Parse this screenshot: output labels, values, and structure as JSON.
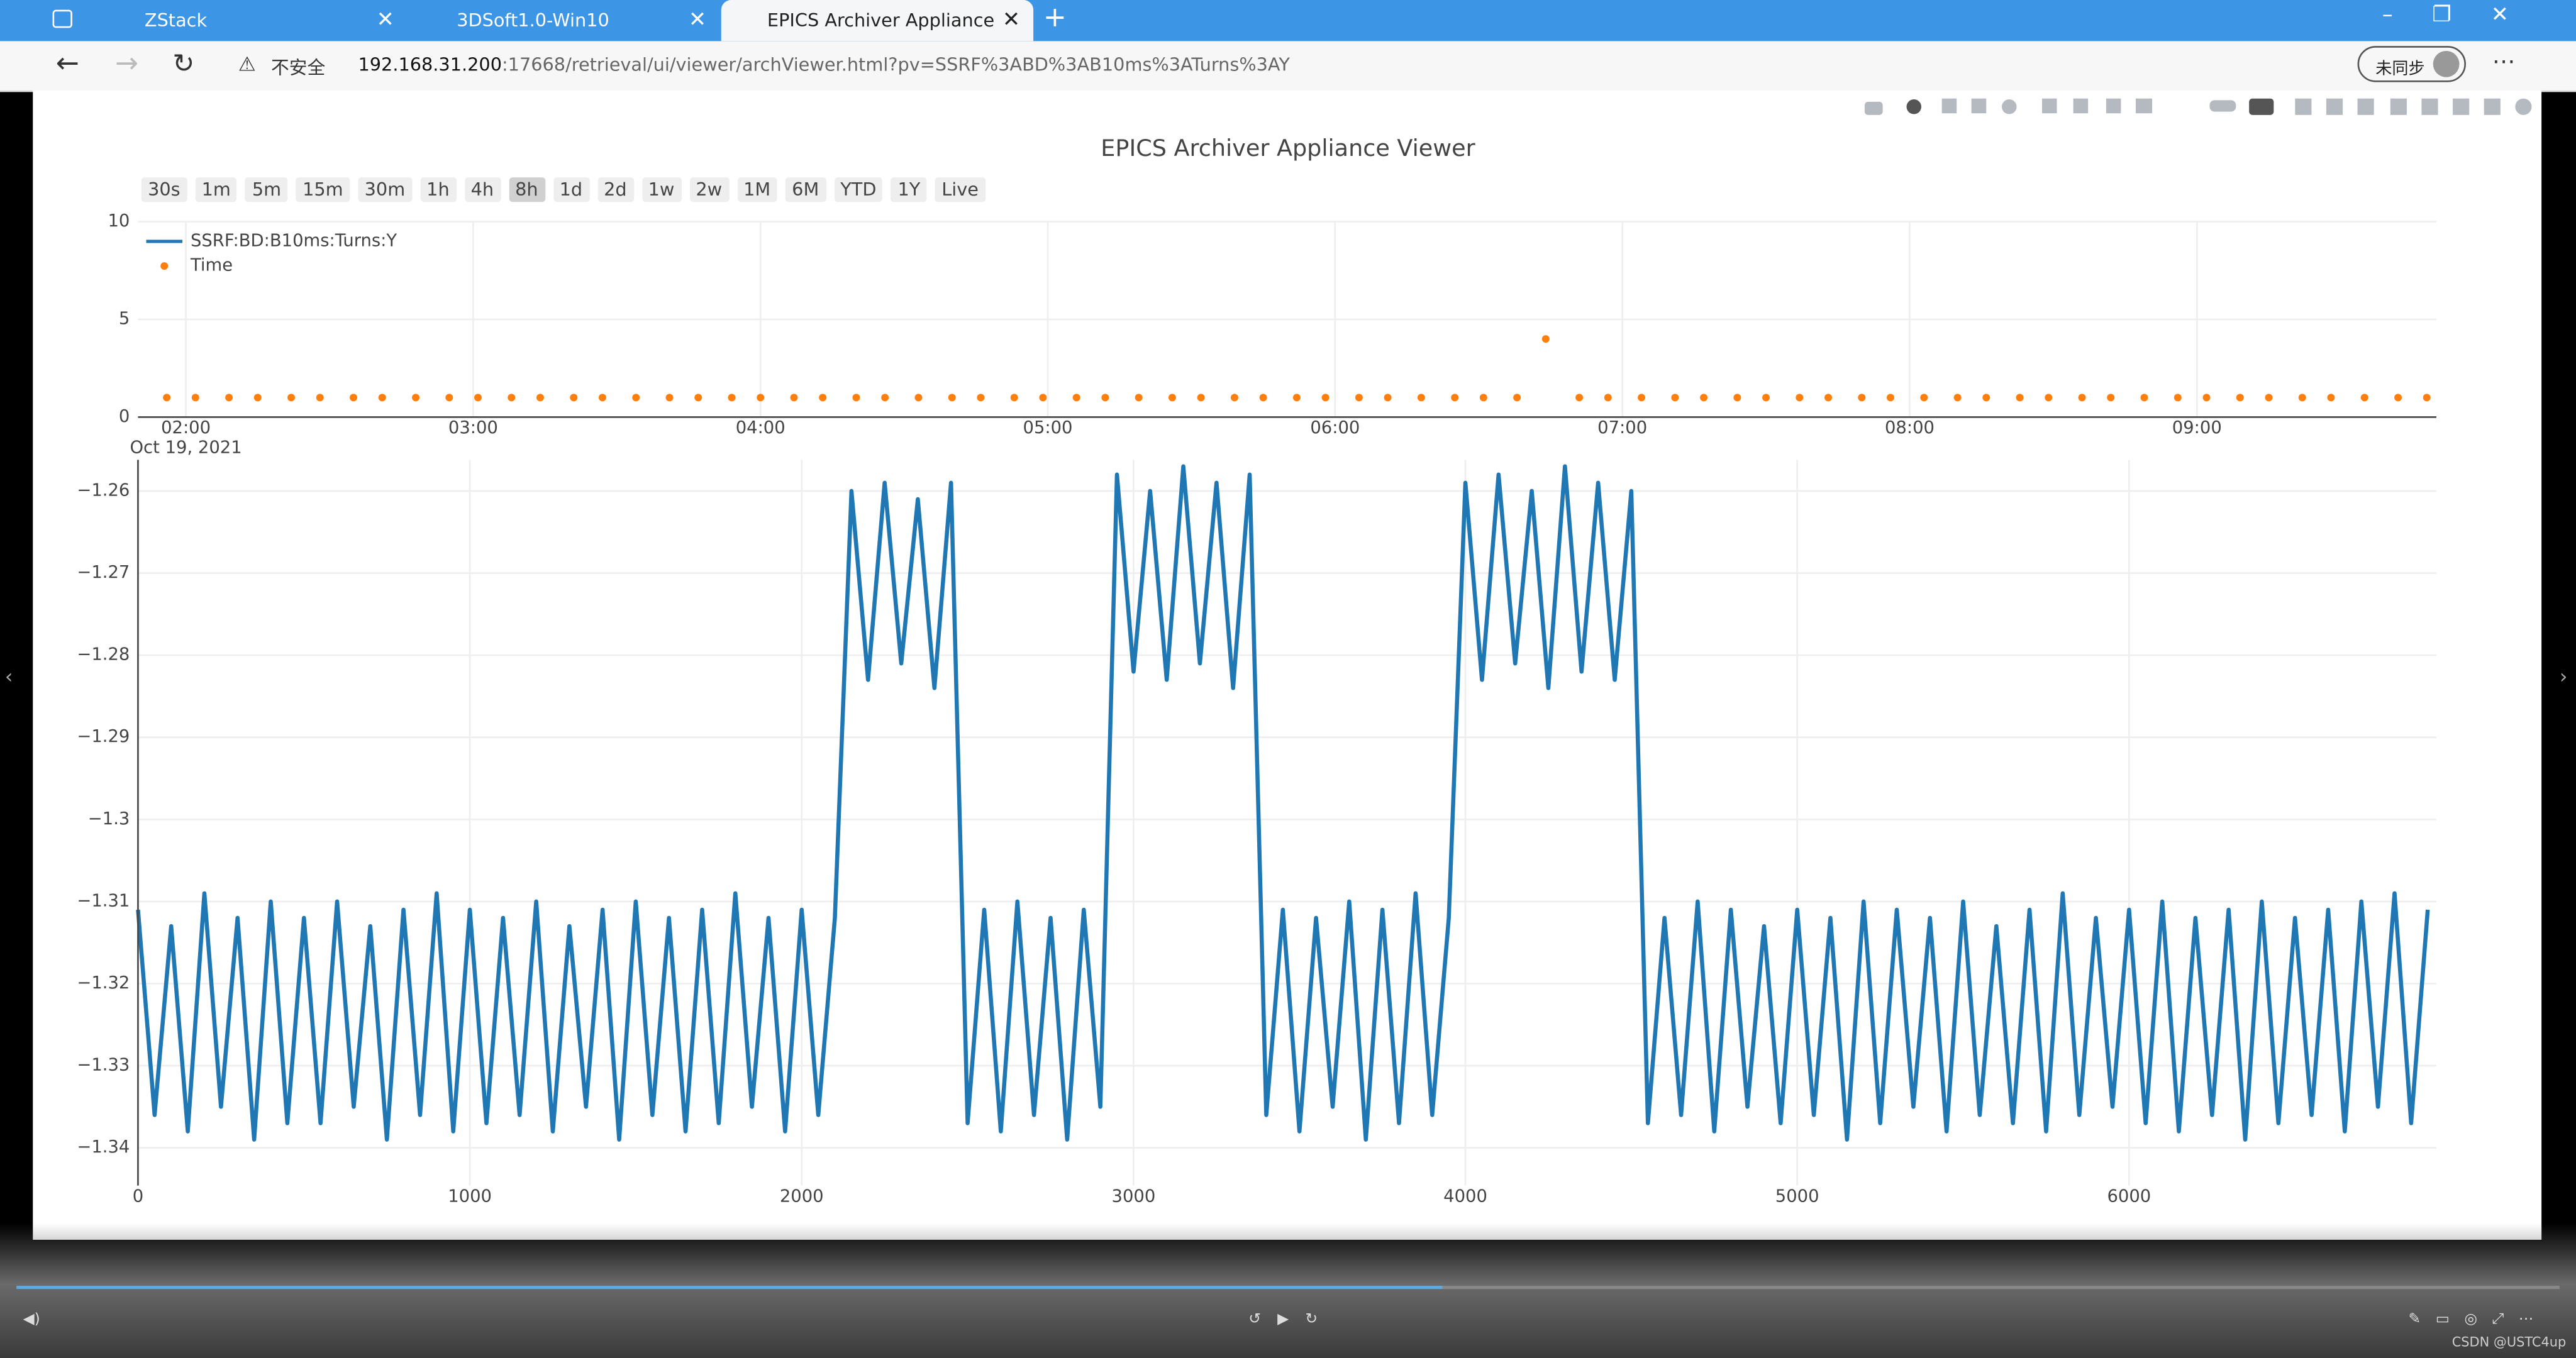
{
  "browser": {
    "tabs": [
      "ZStack",
      "3DSoft1.0-Win10",
      "EPICS Archiver Appliance"
    ],
    "active_tab": 2,
    "security_label": "不安全",
    "url_host": "192.168.31.200",
    "url_path": ":17668/retrieval/ui/viewer/archViewer.html?pv=SSRF%3ABD%3AB10ms%3ATurns%3AY",
    "profile_label": "未同步"
  },
  "range_buttons": [
    "30s",
    "1m",
    "5m",
    "15m",
    "30m",
    "1h",
    "4h",
    "8h",
    "1d",
    "2d",
    "1w",
    "2w",
    "1M",
    "6M",
    "YTD",
    "1Y",
    "Live"
  ],
  "active_range_button": 7,
  "chart_data": [
    {
      "type": "scatter",
      "title": "EPICS Archiver Appliance Viewer",
      "x": [
        "01:56",
        "02:02",
        "02:09",
        "02:15",
        "02:22",
        "02:28",
        "02:35",
        "02:41",
        "02:48",
        "02:55",
        "03:01",
        "03:08",
        "03:14",
        "03:21",
        "03:27",
        "03:34",
        "03:41",
        "03:47",
        "03:54",
        "04:00",
        "04:07",
        "04:13",
        "04:20",
        "04:26",
        "04:33",
        "04:40",
        "04:46",
        "04:53",
        "04:59",
        "05:06",
        "05:12",
        "05:19",
        "05:26",
        "05:32",
        "05:39",
        "05:45",
        "05:52",
        "05:58",
        "06:05",
        "06:11",
        "06:18",
        "06:25",
        "06:31",
        "06:38",
        "06:44",
        "06:51",
        "06:57",
        "07:04",
        "07:11",
        "07:17",
        "07:24",
        "07:30",
        "07:37",
        "07:43",
        "07:50",
        "07:56",
        "08:03",
        "08:10",
        "08:16",
        "08:23",
        "08:29",
        "08:36",
        "08:42",
        "08:49",
        "08:56",
        "09:02",
        "09:09",
        "09:15",
        "09:22",
        "09:28",
        "09:35",
        "09:42",
        "09:48"
      ],
      "series": [
        {
          "name": "Time",
          "color": "#ff7f0e",
          "values": [
            1,
            1,
            1,
            1,
            1,
            1,
            1,
            1,
            1,
            1,
            1,
            1,
            1,
            1,
            1,
            1,
            1,
            1,
            1,
            1,
            1,
            1,
            1,
            1,
            1,
            1,
            1,
            1,
            1,
            1,
            1,
            1,
            1,
            1,
            1,
            1,
            1,
            1,
            1,
            1,
            1,
            1,
            1,
            1,
            4,
            1,
            1,
            1,
            1,
            1,
            1,
            1,
            1,
            1,
            1,
            1,
            1,
            1,
            1,
            1,
            1,
            1,
            1,
            1,
            1,
            1,
            1,
            1,
            1,
            1,
            1,
            1,
            1
          ]
        }
      ],
      "xlim": [
        "01:50",
        "09:50"
      ],
      "xticks": [
        "02:00",
        "03:00",
        "04:00",
        "05:00",
        "06:00",
        "07:00",
        "08:00",
        "09:00"
      ],
      "x_date_label": "Oct 19, 2021",
      "ylim": [
        0,
        10
      ],
      "yticks": [
        0,
        5,
        10
      ],
      "grid": true
    },
    {
      "type": "line",
      "x": [
        0,
        50,
        100,
        150,
        200,
        250,
        300,
        350,
        400,
        450,
        500,
        550,
        600,
        650,
        700,
        750,
        800,
        850,
        900,
        950,
        1000,
        1050,
        1100,
        1150,
        1200,
        1250,
        1300,
        1350,
        1400,
        1450,
        1500,
        1550,
        1600,
        1650,
        1700,
        1750,
        1800,
        1850,
        1900,
        1950,
        2000,
        2050,
        2100,
        2150,
        2200,
        2250,
        2300,
        2350,
        2400,
        2450,
        2500,
        2550,
        2600,
        2650,
        2700,
        2750,
        2800,
        2850,
        2900,
        2950,
        3000,
        3050,
        3100,
        3150,
        3200,
        3250,
        3300,
        3350,
        3400,
        3450,
        3500,
        3550,
        3600,
        3650,
        3700,
        3750,
        3800,
        3850,
        3900,
        3950,
        4000,
        4050,
        4100,
        4150,
        4200,
        4250,
        4300,
        4350,
        4400,
        4450,
        4500,
        4550,
        4600,
        4650,
        4700,
        4750,
        4800,
        4850,
        4900,
        4950,
        5000,
        5050,
        5100,
        5150,
        5200,
        5250,
        5300,
        5350,
        5400,
        5450,
        5500,
        5550,
        5600,
        5650,
        5700,
        5750,
        5800,
        5850,
        5900,
        5950,
        6000,
        6050,
        6100,
        6150,
        6200,
        6250,
        6300,
        6350,
        6400,
        6450,
        6500,
        6550,
        6600,
        6650,
        6700,
        6750,
        6800,
        6850,
        6900
      ],
      "series": [
        {
          "name": "SSRF:BD:B10ms:Turns:Y",
          "color": "#1f77b4",
          "values": [
            -1.311,
            -1.336,
            -1.313,
            -1.338,
            -1.309,
            -1.335,
            -1.312,
            -1.339,
            -1.31,
            -1.337,
            -1.312,
            -1.337,
            -1.31,
            -1.335,
            -1.313,
            -1.339,
            -1.311,
            -1.336,
            -1.309,
            -1.338,
            -1.311,
            -1.337,
            -1.312,
            -1.336,
            -1.31,
            -1.338,
            -1.313,
            -1.335,
            -1.311,
            -1.339,
            -1.31,
            -1.336,
            -1.312,
            -1.338,
            -1.311,
            -1.337,
            -1.309,
            -1.335,
            -1.312,
            -1.338,
            -1.311,
            -1.336,
            -1.312,
            -1.26,
            -1.283,
            -1.259,
            -1.281,
            -1.261,
            -1.284,
            -1.259,
            -1.337,
            -1.311,
            -1.338,
            -1.31,
            -1.336,
            -1.312,
            -1.339,
            -1.311,
            -1.335,
            -1.258,
            -1.282,
            -1.26,
            -1.283,
            -1.257,
            -1.281,
            -1.259,
            -1.284,
            -1.258,
            -1.336,
            -1.311,
            -1.338,
            -1.312,
            -1.335,
            -1.31,
            -1.339,
            -1.311,
            -1.337,
            -1.309,
            -1.336,
            -1.312,
            -1.259,
            -1.283,
            -1.258,
            -1.281,
            -1.26,
            -1.284,
            -1.257,
            -1.282,
            -1.259,
            -1.283,
            -1.26,
            -1.337,
            -1.312,
            -1.336,
            -1.31,
            -1.338,
            -1.311,
            -1.335,
            -1.313,
            -1.337,
            -1.311,
            -1.336,
            -1.312,
            -1.339,
            -1.31,
            -1.337,
            -1.311,
            -1.335,
            -1.312,
            -1.338,
            -1.31,
            -1.336,
            -1.313,
            -1.337,
            -1.311,
            -1.338,
            -1.309,
            -1.336,
            -1.312,
            -1.335,
            -1.311,
            -1.337,
            -1.31,
            -1.338,
            -1.312,
            -1.336,
            -1.311,
            -1.339,
            -1.31,
            -1.337,
            -1.312,
            -1.336,
            -1.311,
            -1.338,
            -1.31,
            -1.335,
            -1.309,
            -1.337,
            -1.311
          ]
        }
      ],
      "xlim": [
        0,
        6926
      ],
      "xticks": [
        0,
        1000,
        2000,
        3000,
        4000,
        5000,
        6000
      ],
      "ylim": [
        -1.3446,
        -1.2562
      ],
      "yticks": [
        {
          "value": -1.34,
          "label": "−1.34"
        },
        {
          "value": -1.33,
          "label": "−1.33"
        },
        {
          "value": -1.32,
          "label": "−1.32"
        },
        {
          "value": -1.31,
          "label": "−1.31"
        },
        {
          "value": -1.3,
          "label": "−1.3"
        },
        {
          "value": -1.29,
          "label": "−1.29"
        },
        {
          "value": -1.28,
          "label": "−1.28"
        },
        {
          "value": -1.27,
          "label": "−1.27"
        },
        {
          "value": -1.26,
          "label": "−1.26"
        }
      ],
      "grid": true
    }
  ],
  "watermark": "CSDN @USTC4up"
}
